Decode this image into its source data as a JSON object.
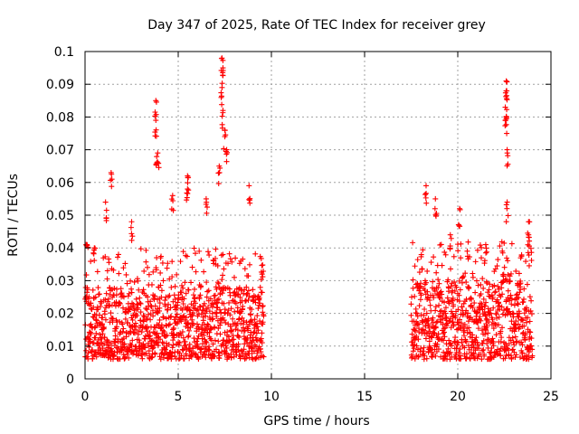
{
  "chart_data": {
    "type": "scatter",
    "title": "Day 347 of 2025, Rate Of TEC Index for receiver grey",
    "xlabel": "GPS time / hours",
    "ylabel": "ROTI / TECUs",
    "xlim": [
      0,
      25
    ],
    "ylim": [
      0,
      0.1
    ],
    "x_ticks": [
      "0",
      "5",
      "10",
      "15",
      "20",
      "25"
    ],
    "y_ticks": [
      "0",
      "0.01",
      "0.02",
      "0.03",
      "0.04",
      "0.05",
      "0.06",
      "0.07",
      "0.08",
      "0.09",
      "0.1"
    ],
    "grid": true,
    "marker": "+",
    "marker_color": "#ff0000",
    "data_segments": [
      {
        "x_range": [
          0,
          9.6
        ],
        "typical_range": [
          0.006,
          0.028
        ]
      },
      {
        "x_range": [
          17.5,
          24
        ],
        "typical_range": [
          0.006,
          0.03
        ]
      }
    ],
    "peaks": [
      {
        "x": 0.1,
        "y": 0.041
      },
      {
        "x": 0.5,
        "y": 0.04
      },
      {
        "x": 1.4,
        "y": 0.063
      },
      {
        "x": 1.1,
        "y": 0.054
      },
      {
        "x": 2.5,
        "y": 0.048
      },
      {
        "x": 3.8,
        "y": 0.085
      },
      {
        "x": 3.8,
        "y": 0.079
      },
      {
        "x": 3.9,
        "y": 0.069
      },
      {
        "x": 3.85,
        "y": 0.066
      },
      {
        "x": 4.7,
        "y": 0.056
      },
      {
        "x": 5.5,
        "y": 0.062
      },
      {
        "x": 5.5,
        "y": 0.058
      },
      {
        "x": 6.5,
        "y": 0.055
      },
      {
        "x": 7.2,
        "y": 0.065
      },
      {
        "x": 7.35,
        "y": 0.098
      },
      {
        "x": 7.4,
        "y": 0.095
      },
      {
        "x": 7.35,
        "y": 0.089
      },
      {
        "x": 7.4,
        "y": 0.082
      },
      {
        "x": 7.5,
        "y": 0.076
      },
      {
        "x": 7.6,
        "y": 0.07
      },
      {
        "x": 8.8,
        "y": 0.059
      },
      {
        "x": 9.5,
        "y": 0.032
      },
      {
        "x": 18.3,
        "y": 0.059
      },
      {
        "x": 18.8,
        "y": 0.055
      },
      {
        "x": 20.1,
        "y": 0.052
      },
      {
        "x": 19.6,
        "y": 0.044
      },
      {
        "x": 21.5,
        "y": 0.041
      },
      {
        "x": 22.6,
        "y": 0.091
      },
      {
        "x": 22.6,
        "y": 0.088
      },
      {
        "x": 22.55,
        "y": 0.083
      },
      {
        "x": 22.6,
        "y": 0.08
      },
      {
        "x": 22.65,
        "y": 0.07
      },
      {
        "x": 22.65,
        "y": 0.054
      },
      {
        "x": 23.8,
        "y": 0.048
      },
      {
        "x": 23.8,
        "y": 0.044
      }
    ]
  }
}
